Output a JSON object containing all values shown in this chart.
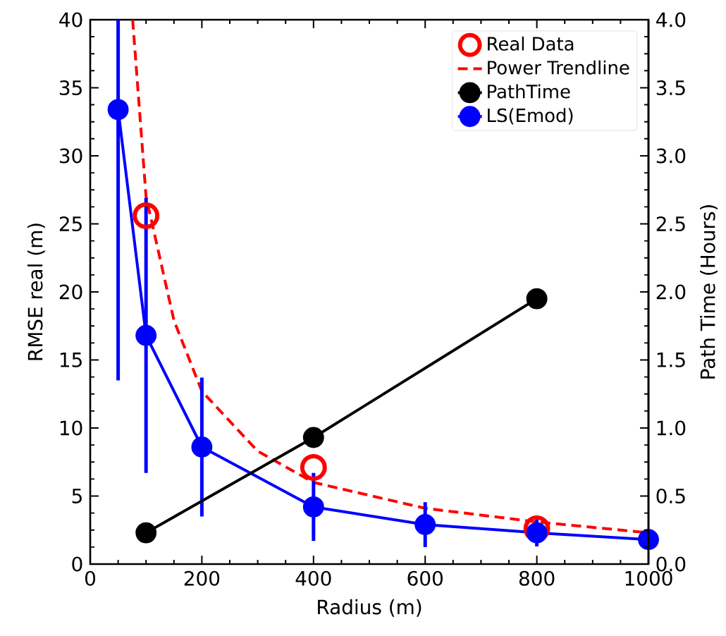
{
  "chart_data": {
    "type": "line",
    "xlabel": "Radius (m)",
    "ylabel": "RMSE real (m)",
    "y2label": "Path Time (Hours)",
    "xlim": [
      0,
      1000
    ],
    "xticks": [
      0,
      200,
      400,
      600,
      800,
      1000
    ],
    "ylim": [
      0,
      40
    ],
    "yticks": [
      0,
      5,
      10,
      15,
      20,
      25,
      30,
      35,
      40
    ],
    "y2lim": [
      0,
      4
    ],
    "y2ticks": [
      {
        "value": 0,
        "label": "0.0"
      },
      {
        "value": 0.5,
        "label": "0.5"
      },
      {
        "value": 1,
        "label": "1.0"
      },
      {
        "value": 1.5,
        "label": "1.5"
      },
      {
        "value": 2,
        "label": "2.0"
      },
      {
        "value": 2.5,
        "label": "2.5"
      },
      {
        "value": 3,
        "label": "3.0"
      },
      {
        "value": 3.5,
        "label": "3.5"
      },
      {
        "value": 4,
        "label": "4.0"
      }
    ],
    "legend": "top right",
    "marker": "circle",
    "series": [
      {
        "name": "Real Data",
        "type": "scatter",
        "color": "#ff0000",
        "x": [
          100,
          400,
          800
        ],
        "values": [
          25.6,
          7.1,
          2.6
        ]
      },
      {
        "name": "Power Trendline",
        "color": "#ff0000",
        "line_style": "dashed",
        "marker": "none",
        "x": [
          76,
          100,
          150,
          200,
          300,
          400,
          600,
          800,
          1000
        ],
        "values": [
          40,
          27,
          17.9,
          12.7,
          8.3,
          6.0,
          4.1,
          3.1,
          2.3
        ]
      },
      {
        "name": "PathTime",
        "axis": "y2",
        "color": "#000000",
        "x": [
          100,
          400,
          800
        ],
        "values": [
          0.23,
          0.93,
          1.95
        ]
      },
      {
        "name": "LS(Emod)",
        "color": "#0000ff",
        "x": [
          50,
          100,
          200,
          400,
          600,
          800,
          1000
        ],
        "values": [
          33.4,
          16.8,
          8.6,
          4.2,
          2.9,
          2.3,
          1.8
        ],
        "errors": [
          [
            13.5,
            40
          ],
          10.1,
          5.1,
          2.5,
          1.65,
          1.0,
          null
        ]
      }
    ]
  }
}
